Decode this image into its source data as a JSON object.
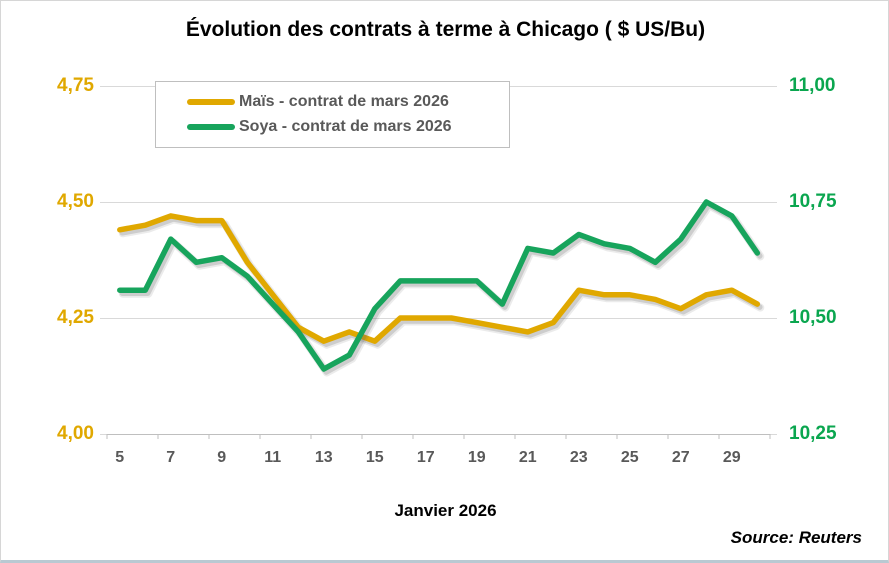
{
  "source": {
    "text": "Source: Reuters"
  },
  "chart_data": {
    "type": "line",
    "title": "Évolution des contrats à terme à Chicago ( $ US/Bu)",
    "xlabel": "Janvier 2026",
    "grid": true,
    "legend_position": "top-left-inside",
    "x_days": [
      5,
      6,
      7,
      8,
      9,
      10,
      11,
      12,
      13,
      14,
      15,
      16,
      17,
      18,
      19,
      20,
      21,
      22,
      23,
      24,
      25,
      26,
      27,
      28,
      29,
      30
    ],
    "x_tick_labels": [
      "5",
      "7",
      "9",
      "11",
      "13",
      "15",
      "17",
      "19",
      "21",
      "23",
      "25",
      "27",
      "29"
    ],
    "left_axis": {
      "color": "#e0a800",
      "range": [
        4.0,
        4.75
      ],
      "ticks": [
        {
          "label": "4,75",
          "value": 4.75
        },
        {
          "label": "4,50",
          "value": 4.5
        },
        {
          "label": "4,25",
          "value": 4.25
        },
        {
          "label": "4,00",
          "value": 4.0
        }
      ]
    },
    "right_axis": {
      "color": "#0aa64f",
      "range": [
        10.25,
        11.0
      ],
      "ticks": [
        {
          "label": "11,00",
          "value": 11.0
        },
        {
          "label": "10,75",
          "value": 10.75
        },
        {
          "label": "10,50",
          "value": 10.5
        },
        {
          "label": "10,25",
          "value": 10.25
        }
      ]
    },
    "series": [
      {
        "name": "Maïs - contrat de mars 2026",
        "axis": "left",
        "color": "#e0a800",
        "values": [
          4.44,
          4.45,
          4.47,
          4.46,
          4.46,
          4.37,
          4.3,
          4.23,
          4.2,
          4.22,
          4.2,
          4.25,
          4.25,
          4.25,
          4.24,
          4.23,
          4.22,
          4.24,
          4.31,
          4.3,
          4.3,
          4.29,
          4.27,
          4.3,
          4.31,
          4.28
        ]
      },
      {
        "name": "Soya - contrat de mars 2026",
        "axis": "right",
        "color": "#17a45c",
        "values": [
          10.56,
          10.56,
          10.67,
          10.62,
          10.63,
          10.59,
          10.53,
          10.47,
          10.39,
          10.42,
          10.52,
          10.58,
          10.58,
          10.58,
          10.58,
          10.53,
          10.65,
          10.64,
          10.68,
          10.66,
          10.65,
          10.62,
          10.67,
          10.75,
          10.72,
          10.64
        ]
      }
    ]
  }
}
